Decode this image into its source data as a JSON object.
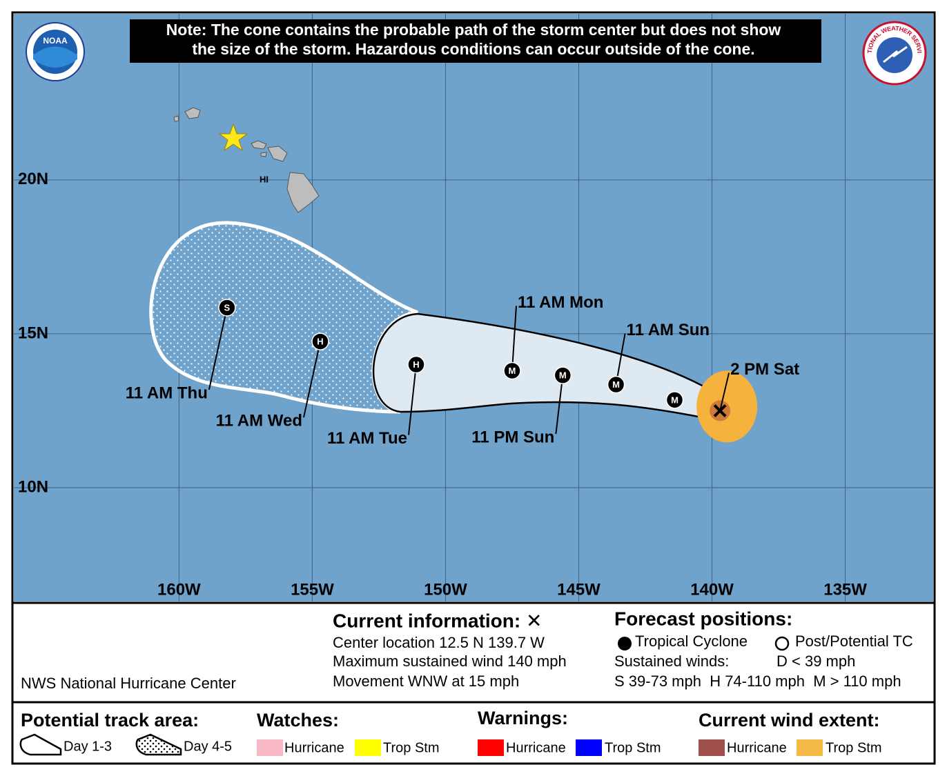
{
  "note": [
    "Note: The cone contains the probable path of the storm center but does not show",
    "the size of the storm. Hazardous conditions can occur outside of the cone."
  ],
  "logos": {
    "noaa": "NOAA",
    "nws": "NATIONAL WEATHER SERVICE"
  },
  "map": {
    "xlim": [
      -166.2,
      -131.7
    ],
    "ylim": [
      6.3,
      25.4
    ],
    "lon_ticks": [
      {
        "value": -160,
        "label": "160W"
      },
      {
        "value": -155,
        "label": "155W"
      },
      {
        "value": -150,
        "label": "150W"
      },
      {
        "value": -145,
        "label": "145W"
      },
      {
        "value": -140,
        "label": "140W"
      },
      {
        "value": -135,
        "label": "135W"
      }
    ],
    "lat_ticks": [
      {
        "value": 20,
        "label": "20N"
      },
      {
        "value": 15,
        "label": "15N"
      },
      {
        "value": 10,
        "label": "10N"
      }
    ],
    "place_label": "HI"
  },
  "current": {
    "lat": 12.5,
    "lon": -139.7,
    "label": "2 PM Sat"
  },
  "forecast": [
    {
      "time": null,
      "symbol": "M",
      "lat": 12.85,
      "lon": -141.4
    },
    {
      "time": "11 AM Sun",
      "symbol": "M",
      "lat": 13.35,
      "lon": -143.6
    },
    {
      "time": "11 PM Sun",
      "symbol": "M",
      "lat": 13.65,
      "lon": -145.6
    },
    {
      "time": "11 AM Mon",
      "symbol": "M",
      "lat": 13.8,
      "lon": -147.5
    },
    {
      "time": "11 AM Tue",
      "symbol": "H",
      "lat": 14.0,
      "lon": -151.1
    },
    {
      "time": "11 AM Wed",
      "symbol": "H",
      "lat": 14.75,
      "lon": -154.7
    },
    {
      "time": "11 AM Thu",
      "symbol": "S",
      "lat": 15.85,
      "lon": -158.2
    }
  ],
  "info": {
    "agency": "NWS National Hurricane Center",
    "current_title": "Current information: ✕",
    "current_lines": [
      "Center location 12.5 N 139.7 W",
      "Maximum sustained wind 140 mph",
      "Movement WNW at 15 mph"
    ],
    "forecast_title": "Forecast positions:",
    "tropical_cyclone": "Tropical Cyclone",
    "post_potential": "Post/Potential TC",
    "sustained_winds": "Sustained winds:",
    "d_range": "D < 39 mph",
    "ranges": "S 39-73 mph  H 74-110 mph  M > 110 mph"
  },
  "legend": {
    "track_title": "Potential track area:",
    "day13": "Day 1-3",
    "day45": "Day 4-5",
    "watches": "Watches:",
    "warnings": "Warnings:",
    "wind_extent": "Current wind extent:",
    "hurricane": "Hurricane",
    "trop_stm": "Trop Stm"
  }
}
